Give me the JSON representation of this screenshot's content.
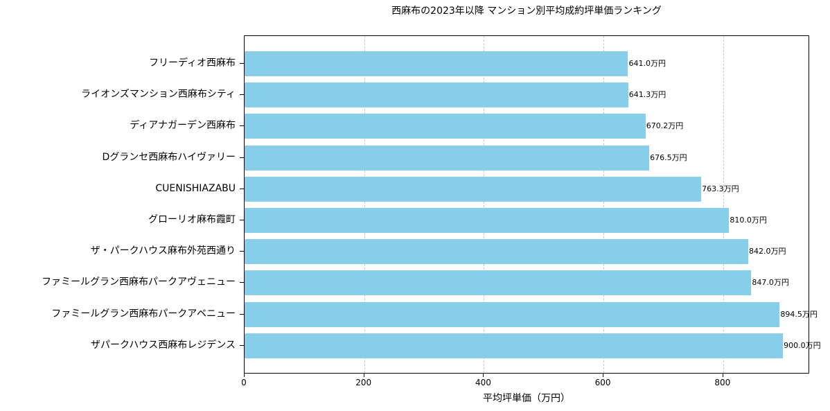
{
  "chart_data": {
    "type": "bar",
    "orientation": "horizontal",
    "title": "西麻布の2023年以降 マンション別平均成約坪単価ランキング",
    "xlabel": "平均坪単価（万円）",
    "ylabel": "",
    "xlim": [
      0,
      945
    ],
    "xticks": [
      0,
      200,
      400,
      600,
      800
    ],
    "grid": "x, dashed",
    "bar_color": "#87ceeb",
    "value_suffix": "万円",
    "categories": [
      "フリーディオ西麻布",
      "ライオンズマンション西麻布シティ",
      "ディアナガーデン西麻布",
      "Dグランセ西麻布ハイヴァリー",
      "CUENISHIAZABU",
      "グローリオ麻布霞町",
      "ザ・パークハウス麻布外苑西通り",
      "ファミールグラン西麻布パークアヴェニュー",
      "ファミールグラン西麻布パークアベニュー",
      "ザパークハウス西麻布レジデンス"
    ],
    "values": [
      641.0,
      641.3,
      670.2,
      676.5,
      763.3,
      810.0,
      842.0,
      847.0,
      894.5,
      900.0
    ],
    "value_labels": [
      "641.0万円",
      "641.3万円",
      "670.2万円",
      "676.5万円",
      "763.3万円",
      "810.0万円",
      "842.0万円",
      "847.0万円",
      "894.5万円",
      "900.0万円"
    ]
  }
}
